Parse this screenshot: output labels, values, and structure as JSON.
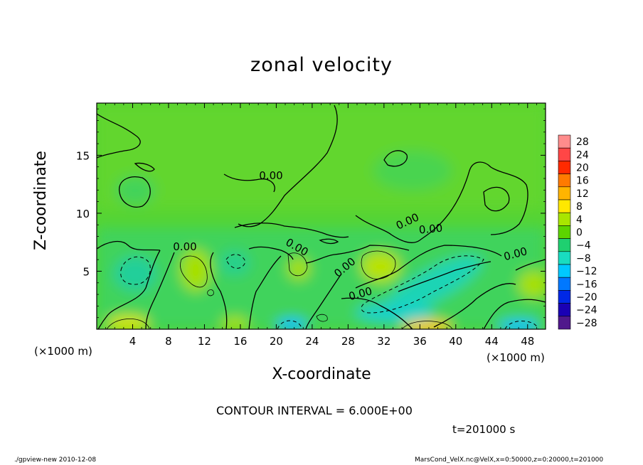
{
  "chart_data": {
    "type": "heatmap",
    "title": "zonal velocity",
    "xlabel": "X-coordinate",
    "ylabel": "Z-coordinate",
    "x_unit_left": "(×1000 m)",
    "x_unit_right": "(×1000 m)",
    "xlim": [
      0,
      50
    ],
    "ylim": [
      0,
      19.5
    ],
    "x_ticks": [
      4,
      8,
      12,
      16,
      20,
      24,
      28,
      32,
      36,
      40,
      44,
      48
    ],
    "y_ticks": [
      5,
      10,
      15
    ],
    "colorbar": {
      "levels": [
        28,
        24,
        20,
        16,
        12,
        8,
        4,
        0,
        -4,
        -8,
        -12,
        -16,
        -20,
        -24,
        -28
      ],
      "colors": [
        "#ff8c8c",
        "#ff4646",
        "#ff2a00",
        "#ff7a00",
        "#ffb400",
        "#ffe800",
        "#a8e600",
        "#5cd400",
        "#1fd070",
        "#19dcc0",
        "#00c8ff",
        "#0078ff",
        "#0028e6",
        "#1a00b4",
        "#50188c"
      ]
    },
    "contour_labels": [
      "0.00",
      "0.00",
      "0.00",
      "0.00",
      "0.00",
      "0.00",
      "0.00",
      "0.00"
    ],
    "contour_interval": "CONTOUR INTERVAL = 6.000E+00",
    "time": "t=201000 s",
    "grid": false,
    "legend": "colorbar-right"
  },
  "footer": {
    "left": "./gpview-new   2010-12-08",
    "right": "MarsCond_VelX.nc@VelX,x=0:50000,z=0:20000,t=201000"
  }
}
